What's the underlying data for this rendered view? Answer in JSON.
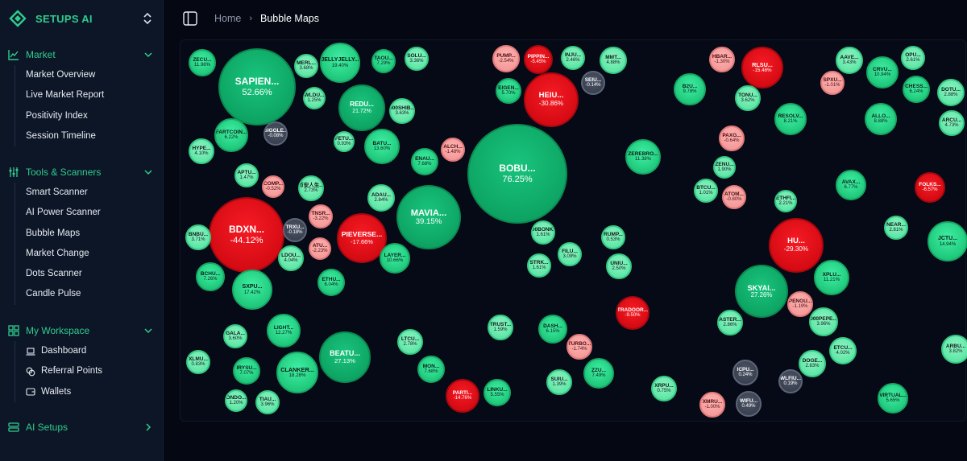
{
  "brand": {
    "name": "SETUPS AI",
    "logo_icon": "setups-logo-icon",
    "switch_icon": "chevron-updown-icon"
  },
  "sidebar": {
    "sections": [
      {
        "label": "Market",
        "icon": "chart-icon",
        "expanded": true,
        "items": [
          {
            "label": "Market Overview"
          },
          {
            "label": "Live Market Report"
          },
          {
            "label": "Positivity Index"
          },
          {
            "label": "Session Timeline"
          }
        ]
      },
      {
        "label": "Tools & Scanners",
        "icon": "sliders-icon",
        "expanded": true,
        "items": [
          {
            "label": "Smart Scanner"
          },
          {
            "label": "AI Power Scanner"
          },
          {
            "label": "Bubble Maps"
          },
          {
            "label": "Market Change"
          },
          {
            "label": "Dots Scanner"
          },
          {
            "label": "Candle Pulse"
          }
        ]
      },
      {
        "label": "My Workspace",
        "icon": "grid-icon",
        "expanded": true,
        "items": [
          {
            "label": "Dashboard",
            "icon": "laptop-icon"
          },
          {
            "label": "Referral Points",
            "icon": "coins-icon"
          },
          {
            "label": "Wallets",
            "icon": "wallet-icon"
          }
        ]
      },
      {
        "label": "AI Setups",
        "icon": "layers-icon",
        "expanded": false,
        "items": []
      }
    ]
  },
  "header": {
    "toggle_icon": "sidebar-toggle-icon",
    "breadcrumb_home": "Home",
    "breadcrumb_sep": "›",
    "breadcrumb_current": "Bubble Maps"
  },
  "colors": {
    "accent": "#2ecc8f",
    "strong_up": "#0ea564",
    "up": "#20c97c",
    "mild_up": "#5fe6a6",
    "strong_down": "#d60b14",
    "mild_down": "#f59a9a",
    "neutral": "#3a4150"
  },
  "bubbles": [
    {
      "name": "ZECU...",
      "change": "11.98%",
      "tone": "g1"
    },
    {
      "name": "SAPIEN...",
      "change": "52.66%",
      "tone": "g2"
    },
    {
      "name": "MERL...",
      "change": "3.68%",
      "tone": "g3"
    },
    {
      "name": "JELLYJELLY...",
      "change": "19.40%",
      "tone": "g1"
    },
    {
      "name": "TAOU...",
      "change": "7.29%",
      "tone": "g1"
    },
    {
      "name": "SOLU...",
      "change": "3.36%",
      "tone": "g3"
    },
    {
      "name": "WLDU...",
      "change": "1.25%",
      "tone": "g3"
    },
    {
      "name": "REDU...",
      "change": "21.72%",
      "tone": "g2"
    },
    {
      "name": "000SHIB...",
      "change": "3.63%",
      "tone": "g3"
    },
    {
      "name": "FARTCOIN...",
      "change": "6.22%",
      "tone": "g1"
    },
    {
      "name": "GIGGLE...",
      "change": "-0.08%",
      "tone": "gy"
    },
    {
      "name": "FETU...",
      "change": "0.93%",
      "tone": "g3"
    },
    {
      "name": "BATU...",
      "change": "13.60%",
      "tone": "g1"
    },
    {
      "name": "HYPE...",
      "change": "4.10%",
      "tone": "g3"
    },
    {
      "name": "APTU...",
      "change": "1.47%",
      "tone": "g3"
    },
    {
      "name": "COMP...",
      "change": "-0.52%",
      "tone": "r2"
    },
    {
      "name": "币安人生...",
      "change": "2.73%",
      "tone": "g3"
    },
    {
      "name": "ENAU...",
      "change": "7.68%",
      "tone": "g1"
    },
    {
      "name": "ALCH...",
      "change": "-1.48%",
      "tone": "r2"
    },
    {
      "name": "ADAU...",
      "change": "2.84%",
      "tone": "g3"
    },
    {
      "name": "BDXN...",
      "change": "-44.12%",
      "tone": "r1"
    },
    {
      "name": "TNSR...",
      "change": "-3.22%",
      "tone": "r2"
    },
    {
      "name": "TRXU...",
      "change": "-0.18%",
      "tone": "gy"
    },
    {
      "name": "PIEVERSE...",
      "change": "-17.66%",
      "tone": "r1"
    },
    {
      "name": "MAVIA...",
      "change": "39.15%",
      "tone": "g2"
    },
    {
      "name": "BNBU...",
      "change": "3.71%",
      "tone": "g3"
    },
    {
      "name": "ATU...",
      "change": "-2.23%",
      "tone": "r2"
    },
    {
      "name": "LDOU...",
      "change": "4.04%",
      "tone": "g3"
    },
    {
      "name": "LAYER...",
      "change": "10.66%",
      "tone": "g1"
    },
    {
      "name": "BCHU...",
      "change": "7.26%",
      "tone": "g1"
    },
    {
      "name": "ETHU...",
      "change": "6.04%",
      "tone": "g1"
    },
    {
      "name": "SXPU...",
      "change": "17.42%",
      "tone": "g1"
    },
    {
      "name": "LIGHT...",
      "change": "12.27%",
      "tone": "g1"
    },
    {
      "name": "GALA...",
      "change": "3.60%",
      "tone": "g3"
    },
    {
      "name": "BEATU...",
      "change": "27.13%",
      "tone": "g2"
    },
    {
      "name": "XLMU...",
      "change": "0.83%",
      "tone": "g3"
    },
    {
      "name": "IRYSU...",
      "change": "7.07%",
      "tone": "g1"
    },
    {
      "name": "CLANKER...",
      "change": "18.28%",
      "tone": "g1"
    },
    {
      "name": "ONDO...",
      "change": "1.20%",
      "tone": "g3"
    },
    {
      "name": "TIAU...",
      "change": "3.96%",
      "tone": "g3"
    },
    {
      "name": "LTCU...",
      "change": "2.78%",
      "tone": "g3"
    },
    {
      "name": "MON...",
      "change": "7.68%",
      "tone": "g1"
    },
    {
      "name": "PARTI...",
      "change": "-14.76%",
      "tone": "r1"
    },
    {
      "name": "LINKU...",
      "change": "5.55%",
      "tone": "g1"
    },
    {
      "name": "PUMP...",
      "change": "-2.54%",
      "tone": "r2"
    },
    {
      "name": "PIPPIN...",
      "change": "-5.45%",
      "tone": "r1"
    },
    {
      "name": "INJU...",
      "change": "2.46%",
      "tone": "g3"
    },
    {
      "name": "MMT...",
      "change": "4.88%",
      "tone": "g3"
    },
    {
      "name": "EIGEN...",
      "change": "5.70%",
      "tone": "g1"
    },
    {
      "name": "HEIU...",
      "change": "-30.86%",
      "tone": "r1"
    },
    {
      "name": "SEIU...",
      "change": "-0.14%",
      "tone": "gy"
    },
    {
      "name": "BOBU...",
      "change": "76.25%",
      "tone": "g2"
    },
    {
      "name": "000BONK...",
      "change": "1.61%",
      "tone": "g3"
    },
    {
      "name": "FILU...",
      "change": "3.09%",
      "tone": "g3"
    },
    {
      "name": "STRK...",
      "change": "1.61%",
      "tone": "g3"
    },
    {
      "name": "RUMP...",
      "change": "0.53%",
      "tone": "g3"
    },
    {
      "name": "UNIU...",
      "change": "2.50%",
      "tone": "g3"
    },
    {
      "name": "TRUST...",
      "change": "1.59%",
      "tone": "g3"
    },
    {
      "name": "DASH...",
      "change": "6.15%",
      "tone": "g1"
    },
    {
      "name": "TURBO...",
      "change": "-1.74%",
      "tone": "r2"
    },
    {
      "name": "SUIU...",
      "change": "1.39%",
      "tone": "g3"
    },
    {
      "name": "ZZU...",
      "change": "7.49%",
      "tone": "g1"
    },
    {
      "name": "TRADOOR...",
      "change": "-9.50%",
      "tone": "r1"
    },
    {
      "name": "ZEREBRO...",
      "change": "11.38%",
      "tone": "g1"
    },
    {
      "name": "B2U...",
      "change": "9.78%",
      "tone": "g1"
    },
    {
      "name": "HBAR...",
      "change": "-1.30%",
      "tone": "r2"
    },
    {
      "name": "RLSU...",
      "change": "-15.46%",
      "tone": "r1"
    },
    {
      "name": "TONU...",
      "change": "3.62%",
      "tone": "g3"
    },
    {
      "name": "PAXG...",
      "change": "-0.64%",
      "tone": "r2"
    },
    {
      "name": "ZENU...",
      "change": "1.90%",
      "tone": "g3"
    },
    {
      "name": "BTCU...",
      "change": "1.01%",
      "tone": "g3"
    },
    {
      "name": "ATOM...",
      "change": "-0.80%",
      "tone": "r2"
    },
    {
      "name": "RESOLV...",
      "change": "8.21%",
      "tone": "g1"
    },
    {
      "name": "ETHFI...",
      "change": "2.21%",
      "tone": "g3"
    },
    {
      "name": "HU...",
      "change": "-29.30%",
      "tone": "r1"
    },
    {
      "name": "SKYAI...",
      "change": "27.26%",
      "tone": "g2"
    },
    {
      "name": "PENGU...",
      "change": "-1.19%",
      "tone": "r2"
    },
    {
      "name": "XPLU...",
      "change": "11.21%",
      "tone": "g1"
    },
    {
      "name": "ASTER...",
      "change": "2.86%",
      "tone": "g3"
    },
    {
      "name": "000PEPE...",
      "change": "3.96%",
      "tone": "g3"
    },
    {
      "name": "ETCU...",
      "change": "4.02%",
      "tone": "g3"
    },
    {
      "name": "DOGE...",
      "change": "2.83%",
      "tone": "g3"
    },
    {
      "name": "ICPU...",
      "change": "0.24%",
      "tone": "gy"
    },
    {
      "name": "WLFIU...",
      "change": "0.19%",
      "tone": "gy"
    },
    {
      "name": "XRPU...",
      "change": "0.75%",
      "tone": "g3"
    },
    {
      "name": "XMRU...",
      "change": "-1.00%",
      "tone": "r2"
    },
    {
      "name": "WIFU...",
      "change": "0.49%",
      "tone": "gy"
    },
    {
      "name": "AAVE...",
      "change": "3.43%",
      "tone": "g3"
    },
    {
      "name": "OPU...",
      "change": "2.61%",
      "tone": "g3"
    },
    {
      "name": "SPXU...",
      "change": "-1.01%",
      "tone": "r2"
    },
    {
      "name": "CRVU...",
      "change": "10.94%",
      "tone": "g1"
    },
    {
      "name": "CHESS...",
      "change": "6.24%",
      "tone": "g1"
    },
    {
      "name": "DOTU...",
      "change": "2.88%",
      "tone": "g3"
    },
    {
      "name": "ALLO...",
      "change": "8.88%",
      "tone": "g1"
    },
    {
      "name": "ARCU...",
      "change": "4.73%",
      "tone": "g3"
    },
    {
      "name": "AVAX...",
      "change": "6.77%",
      "tone": "g1"
    },
    {
      "name": "FOLKS...",
      "change": "-6.57%",
      "tone": "r1"
    },
    {
      "name": "NEAR...",
      "change": "2.81%",
      "tone": "g3"
    },
    {
      "name": "JCTU...",
      "change": "14.94%",
      "tone": "g1"
    },
    {
      "name": "ARBU...",
      "change": "3.82%",
      "tone": "g3"
    },
    {
      "name": "VIRTUAL...",
      "change": "5.65%",
      "tone": "g1"
    }
  ]
}
